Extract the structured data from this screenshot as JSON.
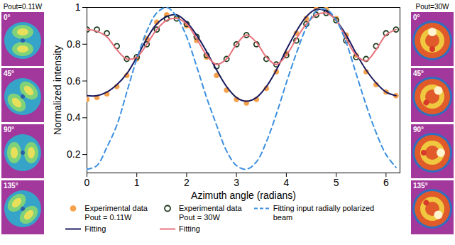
{
  "chart_data": {
    "type": "line",
    "xlabel": "Azimuth angle (radians)",
    "ylabel": "Normalized intensity",
    "x": [
      0,
      0.2,
      0.4,
      0.6,
      0.8,
      1.0,
      1.2,
      1.4,
      1.6,
      1.8,
      2.0,
      2.2,
      2.4,
      2.6,
      2.8,
      3.0,
      3.2,
      3.4,
      3.6,
      3.8,
      4.0,
      4.2,
      4.4,
      4.6,
      4.8,
      5.0,
      5.2,
      5.4,
      5.6,
      5.8,
      6.0,
      6.2
    ],
    "series": [
      {
        "name": "Experimental data\nPout = 0.11W",
        "type": "scatter",
        "marker": "circle",
        "color": "#f5a04a",
        "values": [
          0.5,
          0.51,
          0.53,
          0.57,
          0.63,
          0.72,
          0.83,
          0.92,
          0.96,
          0.95,
          0.9,
          0.82,
          0.73,
          0.63,
          0.55,
          0.5,
          0.48,
          0.5,
          0.56,
          0.65,
          0.75,
          0.86,
          0.94,
          0.99,
          0.99,
          0.94,
          0.85,
          0.74,
          0.65,
          0.58,
          0.54,
          0.52
        ]
      },
      {
        "name": "Experimental data\nPout = 30W",
        "type": "scatter",
        "marker": "open circle",
        "color": "#1f3d1f",
        "values": [
          0.88,
          0.88,
          0.86,
          0.79,
          0.72,
          0.73,
          0.8,
          0.88,
          0.94,
          0.94,
          0.91,
          0.84,
          0.74,
          0.68,
          0.72,
          0.8,
          0.85,
          0.8,
          0.72,
          0.69,
          0.74,
          0.82,
          0.91,
          0.96,
          0.97,
          0.93,
          0.82,
          0.73,
          0.72,
          0.79,
          0.86,
          0.88
        ]
      },
      {
        "name": "Fitting",
        "type": "line",
        "line_style": "solid",
        "color": "#1a1a5e",
        "values": [
          0.52,
          0.52,
          0.54,
          0.58,
          0.64,
          0.73,
          0.83,
          0.91,
          0.95,
          0.96,
          0.92,
          0.85,
          0.76,
          0.66,
          0.57,
          0.51,
          0.49,
          0.51,
          0.57,
          0.66,
          0.77,
          0.87,
          0.95,
          0.99,
          0.98,
          0.93,
          0.85,
          0.75,
          0.66,
          0.59,
          0.54,
          0.52
        ]
      },
      {
        "name": "Fitting",
        "type": "line",
        "line_style": "solid",
        "color": "#e8707a",
        "values": [
          0.88,
          0.87,
          0.84,
          0.77,
          0.72,
          0.73,
          0.8,
          0.88,
          0.93,
          0.94,
          0.91,
          0.83,
          0.74,
          0.69,
          0.72,
          0.8,
          0.85,
          0.81,
          0.73,
          0.69,
          0.74,
          0.83,
          0.91,
          0.96,
          0.97,
          0.93,
          0.83,
          0.74,
          0.71,
          0.77,
          0.85,
          0.88
        ]
      },
      {
        "name": "Fitting input radially polarized beam",
        "type": "line",
        "line_style": "dashed",
        "color": "#3b8fe0",
        "values": [
          0.12,
          0.14,
          0.24,
          0.36,
          0.54,
          0.72,
          0.87,
          0.97,
          1.0,
          0.95,
          0.84,
          0.68,
          0.51,
          0.36,
          0.22,
          0.14,
          0.12,
          0.16,
          0.27,
          0.42,
          0.59,
          0.75,
          0.89,
          0.98,
          0.99,
          0.93,
          0.81,
          0.64,
          0.47,
          0.32,
          0.2,
          0.13
        ]
      }
    ],
    "xlim": [
      0,
      6.28
    ],
    "xticks": [
      0,
      1,
      2,
      3,
      4,
      5,
      6
    ],
    "ylim": [
      0.1,
      1
    ],
    "yticks": [
      0.2,
      0.4,
      0.6,
      0.8,
      1
    ],
    "grid": false,
    "legend": "bottom"
  },
  "panels": {
    "left": {
      "title": "Pout=0.11W",
      "images": [
        "0°",
        "45°",
        "90°",
        "135°"
      ]
    },
    "right": {
      "title": "Pout=30W",
      "images": [
        "0°",
        "45°",
        "90°",
        "135°"
      ]
    }
  }
}
